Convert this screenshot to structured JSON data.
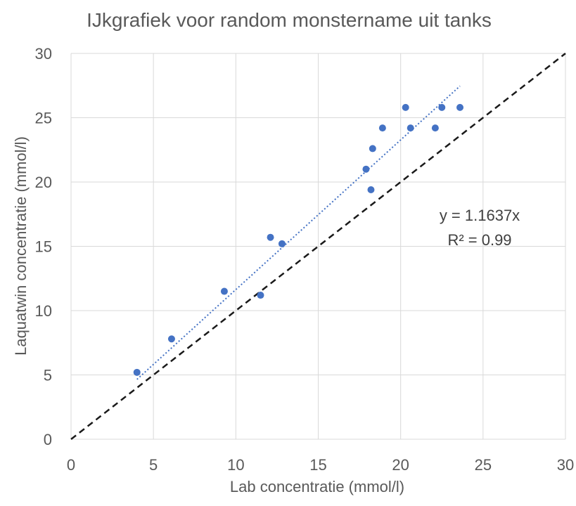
{
  "chart_data": {
    "type": "scatter",
    "title": "IJkgrafiek voor random monstername uit tanks",
    "xlabel": "Lab concentratie (mmol/l)",
    "ylabel": "Laquatwin concentratie (mmol/l)",
    "xlim": [
      0,
      30
    ],
    "ylim": [
      0,
      30
    ],
    "xticks": [
      "0",
      "5",
      "10",
      "15",
      "20",
      "25",
      "30"
    ],
    "yticks": [
      "0",
      "5",
      "10",
      "15",
      "20",
      "25",
      "30"
    ],
    "grid": true,
    "series": [
      {
        "points": [
          [
            4.0,
            5.2
          ],
          [
            6.1,
            7.8
          ],
          [
            9.3,
            11.5
          ],
          [
            11.5,
            11.2
          ],
          [
            12.1,
            15.7
          ],
          [
            12.8,
            15.2
          ],
          [
            17.9,
            21.0
          ],
          [
            18.2,
            19.4
          ],
          [
            18.3,
            22.6
          ],
          [
            18.9,
            24.2
          ],
          [
            20.3,
            25.8
          ],
          [
            20.6,
            24.2
          ],
          [
            22.1,
            24.2
          ],
          [
            22.5,
            25.8
          ],
          [
            23.6,
            25.8
          ]
        ],
        "color": "#4472c4"
      }
    ],
    "trendline": {
      "slope": 1.1637,
      "x_range": [
        4.0,
        23.6
      ],
      "style": "dotted",
      "color": "#4472c4"
    },
    "reference_line": {
      "label": "",
      "x_range": [
        0,
        30
      ],
      "style": "dashed",
      "color": "#1a1a1a"
    },
    "annotation": {
      "equation": "y = 1.1637x",
      "r_squared": "R² = 0.99"
    }
  }
}
